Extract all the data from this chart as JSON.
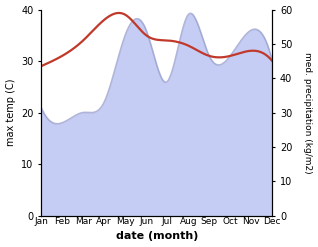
{
  "months": [
    "Jan",
    "Feb",
    "Mar",
    "Apr",
    "May",
    "Jun",
    "Jul",
    "Aug",
    "Sep",
    "Oct",
    "Nov",
    "Dec"
  ],
  "max_temp": [
    29.0,
    31.0,
    34.0,
    38.0,
    39.0,
    35.0,
    34.0,
    33.0,
    31.0,
    31.0,
    32.0,
    30.0
  ],
  "precipitation": [
    21,
    18,
    20,
    22,
    35,
    36,
    26,
    39,
    31,
    31,
    36,
    30
  ],
  "temp_color": "#c0392b",
  "precip_fill_color": "#c5cdf5",
  "precip_line_color": "#9098c8",
  "temp_ylim": [
    0,
    40
  ],
  "precip_ylim": [
    0,
    60
  ],
  "xlabel": "date (month)",
  "ylabel_left": "max temp (C)",
  "ylabel_right": "med. precipitation (kg/m2)",
  "background_color": "#ffffff",
  "temp_linewidth": 1.6,
  "precip_linewidth": 1.2
}
